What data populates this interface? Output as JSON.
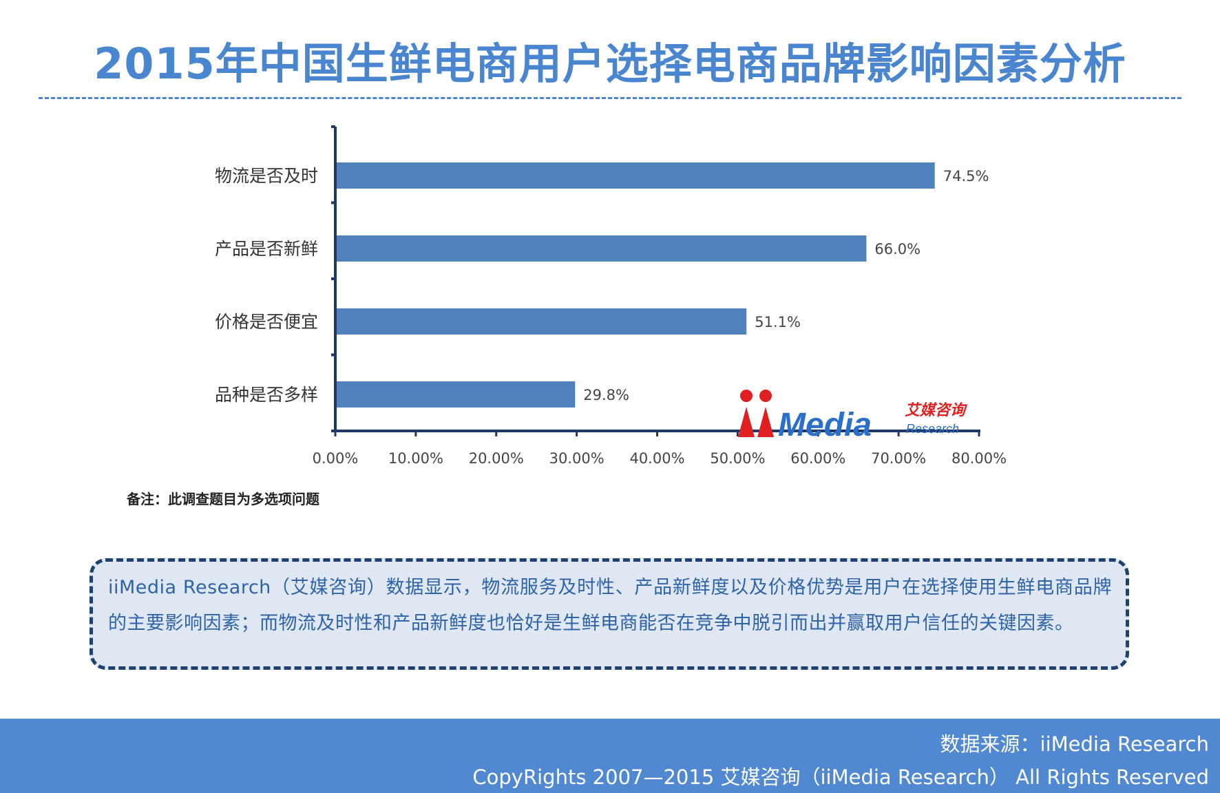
{
  "header": {
    "title": "2015年中国生鲜电商用户选择电商品牌影响因素分析"
  },
  "chart_data": {
    "type": "bar",
    "orientation": "horizontal",
    "categories": [
      "物流是否及时",
      "产品是否新鲜",
      "价格是否便宜",
      "品种是否多样"
    ],
    "values": [
      74.5,
      66.0,
      51.1,
      29.8
    ],
    "data_labels": [
      "74.5%",
      "66.0%",
      "51.1%",
      "29.8%"
    ],
    "xlim": [
      0,
      80
    ],
    "x_ticks": [
      "0.00%",
      "10.00%",
      "20.00%",
      "30.00%",
      "40.00%",
      "50.00%",
      "60.00%",
      "70.00%",
      "80.00%"
    ],
    "grid": false,
    "bar_color": "#4f81bd"
  },
  "note": "备注：此调查题目为多选项问题",
  "logo": {
    "brand": "iiMedia",
    "cn": "艾媒咨询",
    "en": "Research"
  },
  "summary": "iiMedia Research（艾媒咨询）数据显示，物流服务及时性、产品新鲜度以及价格优势是用户在选择使用生鲜电商品牌的主要影响因素；而物流及时性和产品新鲜度也恰好是生鲜电商能否在竞争中脱引而出并赢取用户信任的关键因素。",
  "footer": {
    "source": "数据来源：iiMedia Research",
    "copyright": "CopyRights 2007—2015 艾媒咨询（iiMedia Research） All Rights Reserved"
  },
  "colors": {
    "title": "#4a86cf",
    "footer_bg": "#5089d1",
    "axis": "#1f3864",
    "summary_border": "#1f4170",
    "summary_bg": "#dfe7f2"
  }
}
